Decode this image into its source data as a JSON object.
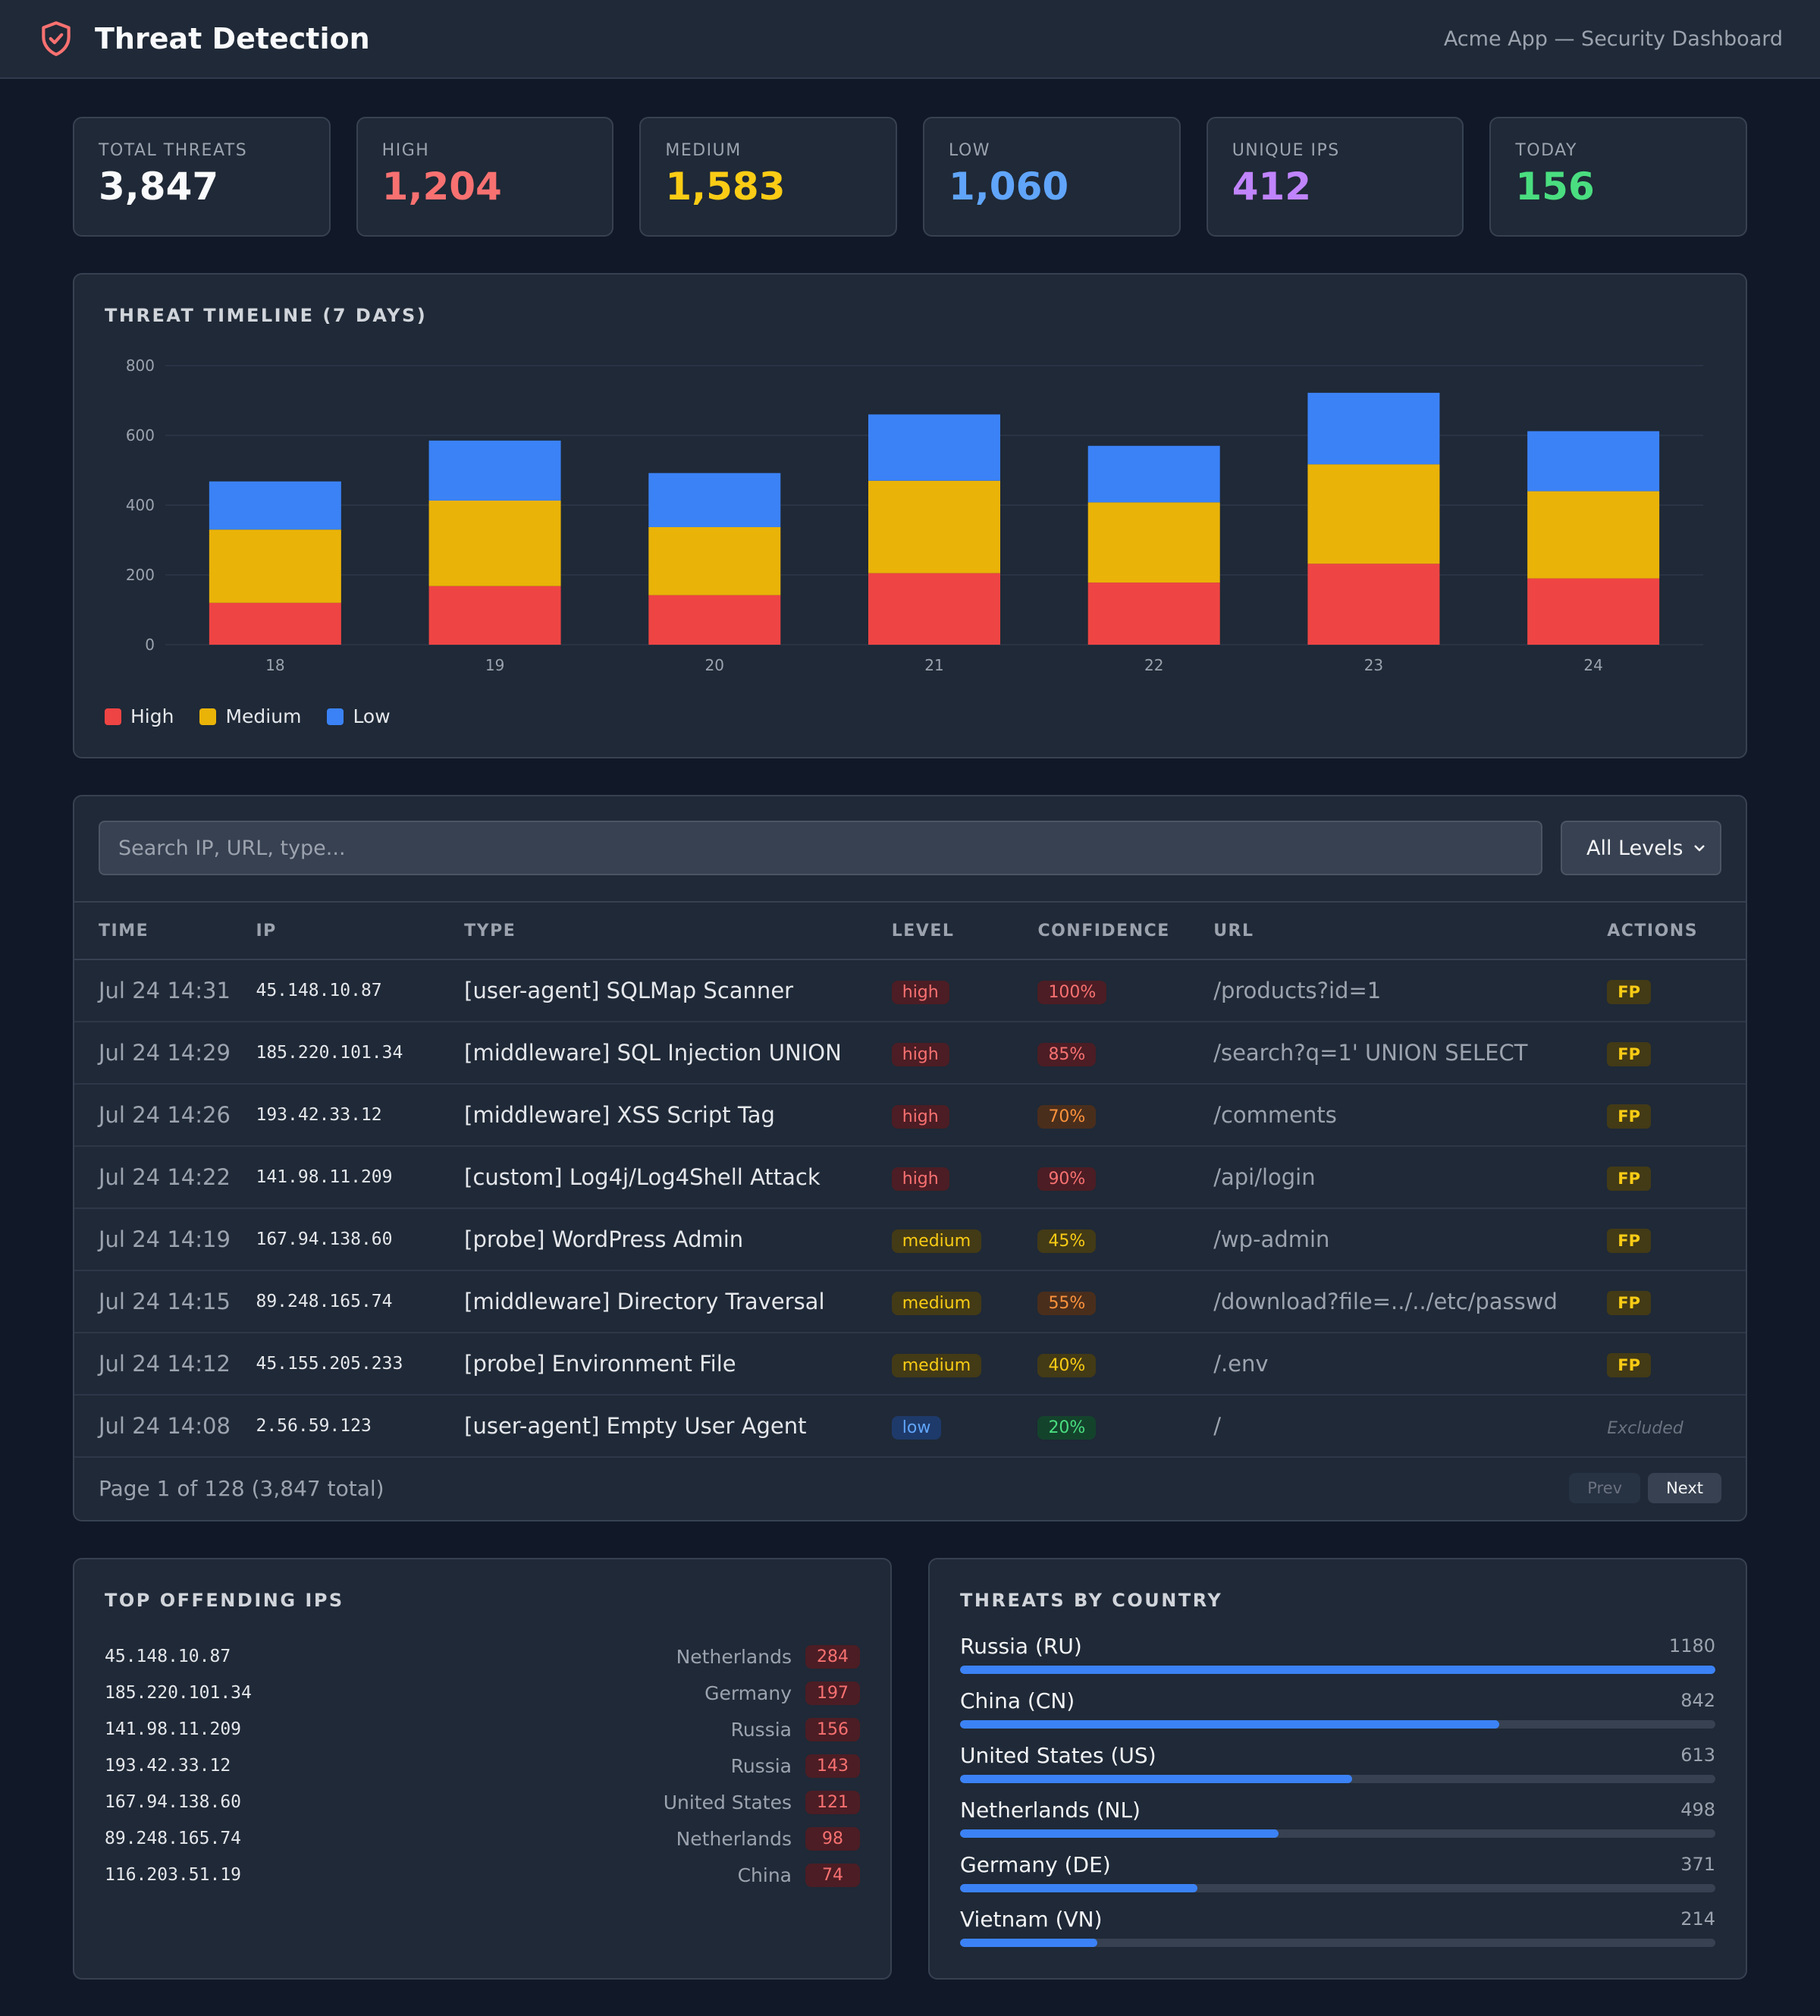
{
  "header": {
    "title": "Threat Detection",
    "subtitle": "Acme App — Security Dashboard",
    "icon": "shield-check-icon"
  },
  "stats": [
    {
      "label": "Total Threats",
      "value": "3,847",
      "color": "#f9fafb"
    },
    {
      "label": "High",
      "value": "1,204",
      "color": "#f87171"
    },
    {
      "label": "Medium",
      "value": "1,583",
      "color": "#facc15"
    },
    {
      "label": "Low",
      "value": "1,060",
      "color": "#60a5fa"
    },
    {
      "label": "Unique IPs",
      "value": "412",
      "color": "#c084fc"
    },
    {
      "label": "Today",
      "value": "156",
      "color": "#4ade80"
    }
  ],
  "timeline": {
    "title": "Threat Timeline (7 Days)"
  },
  "chart_data": {
    "type": "bar",
    "stacked": true,
    "categories": [
      "18",
      "19",
      "20",
      "21",
      "22",
      "23",
      "24"
    ],
    "series": [
      {
        "name": "High",
        "color": "#ef4444",
        "values": [
          120,
          168,
          142,
          205,
          178,
          232,
          190
        ]
      },
      {
        "name": "Medium",
        "color": "#eab308",
        "values": [
          210,
          245,
          195,
          265,
          230,
          285,
          250
        ]
      },
      {
        "name": "Low",
        "color": "#3b82f6",
        "values": [
          138,
          172,
          155,
          190,
          162,
          205,
          172
        ]
      }
    ],
    "ylim": [
      0,
      800
    ],
    "yticks": [
      0,
      200,
      400,
      600,
      800
    ],
    "grid": true,
    "legend": "bottom-left"
  },
  "filters": {
    "search_placeholder": "Search IP, URL, type...",
    "level_selected": "All Levels"
  },
  "table": {
    "columns": [
      "Time",
      "IP",
      "Type",
      "Level",
      "Confidence",
      "URL",
      "Actions"
    ],
    "rows": [
      {
        "time": "Jul 24 14:31",
        "ip": "45.148.10.87",
        "type": "[user-agent] SQLMap Scanner",
        "level": "high",
        "confidence": "100%",
        "conf_style": "red",
        "url": "/products?id=1",
        "action": "FP"
      },
      {
        "time": "Jul 24 14:29",
        "ip": "185.220.101.34",
        "type": "[middleware] SQL Injection UNION",
        "level": "high",
        "confidence": "85%",
        "conf_style": "red",
        "url": "/search?q=1' UNION SELECT",
        "action": "FP"
      },
      {
        "time": "Jul 24 14:26",
        "ip": "193.42.33.12",
        "type": "[middleware] XSS Script Tag",
        "level": "high",
        "confidence": "70%",
        "conf_style": "orange",
        "url": "/comments",
        "action": "FP"
      },
      {
        "time": "Jul 24 14:22",
        "ip": "141.98.11.209",
        "type": "[custom] Log4j/Log4Shell Attack",
        "level": "high",
        "confidence": "90%",
        "conf_style": "red",
        "url": "/api/login",
        "action": "FP"
      },
      {
        "time": "Jul 24 14:19",
        "ip": "167.94.138.60",
        "type": "[probe] WordPress Admin",
        "level": "medium",
        "confidence": "45%",
        "conf_style": "yellow",
        "url": "/wp-admin",
        "action": "FP"
      },
      {
        "time": "Jul 24 14:15",
        "ip": "89.248.165.74",
        "type": "[middleware] Directory Traversal",
        "level": "medium",
        "confidence": "55%",
        "conf_style": "orange",
        "url": "/download?file=../../etc/passwd",
        "action": "FP"
      },
      {
        "time": "Jul 24 14:12",
        "ip": "45.155.205.233",
        "type": "[probe] Environment File",
        "level": "medium",
        "confidence": "40%",
        "conf_style": "yellow",
        "url": "/.env",
        "action": "FP"
      },
      {
        "time": "Jul 24 14:08",
        "ip": "2.56.59.123",
        "type": "[user-agent] Empty User Agent",
        "level": "low",
        "confidence": "20%",
        "conf_style": "green",
        "url": "/",
        "action": "Excluded"
      }
    ]
  },
  "pager": {
    "info": "Page 1 of 128 (3,847 total)",
    "prev": "Prev",
    "next": "Next"
  },
  "top_ips": {
    "title": "Top Offending IPs",
    "items": [
      {
        "ip": "45.148.10.87",
        "country": "Netherlands",
        "count": "284"
      },
      {
        "ip": "185.220.101.34",
        "country": "Germany",
        "count": "197"
      },
      {
        "ip": "141.98.11.209",
        "country": "Russia",
        "count": "156"
      },
      {
        "ip": "193.42.33.12",
        "country": "Russia",
        "count": "143"
      },
      {
        "ip": "167.94.138.60",
        "country": "United States",
        "count": "121"
      },
      {
        "ip": "89.248.165.74",
        "country": "Netherlands",
        "count": "98"
      },
      {
        "ip": "116.203.51.19",
        "country": "China",
        "count": "74"
      }
    ]
  },
  "countries": {
    "title": "Threats by Country",
    "items": [
      {
        "name": "Russia (RU)",
        "count": "1180",
        "value": 1180
      },
      {
        "name": "China (CN)",
        "count": "842",
        "value": 842
      },
      {
        "name": "United States (US)",
        "count": "613",
        "value": 613
      },
      {
        "name": "Netherlands (NL)",
        "count": "498",
        "value": 498
      },
      {
        "name": "Germany (DE)",
        "count": "371",
        "value": 371
      },
      {
        "name": "Vietnam (VN)",
        "count": "214",
        "value": 214
      }
    ]
  }
}
